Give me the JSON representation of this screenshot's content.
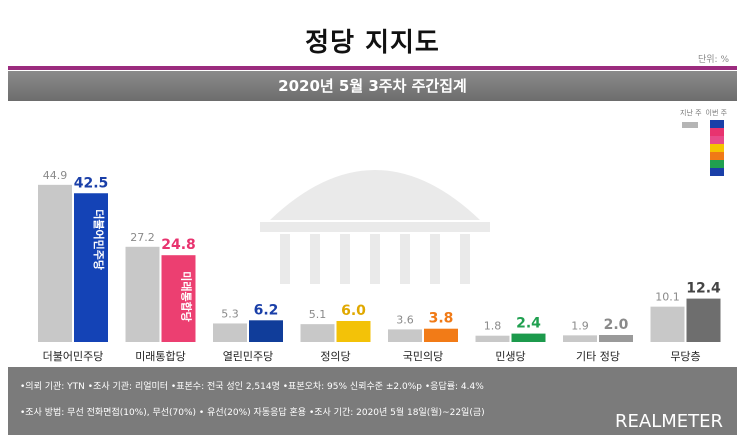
{
  "header": {
    "title": "정당 지지도",
    "unit": "단위: %",
    "subtitle": "2020년 5월 3주차 주간집계"
  },
  "legend": {
    "prev_label": "지난 주",
    "cur_label": "이번 주",
    "cur_colors": [
      "#1a3fa8",
      "#e8336f",
      "#e84a8a",
      "#f5c400",
      "#f07a16",
      "#20a050",
      "#1a3fa8"
    ]
  },
  "colors": {
    "prev_bar": "#c8c8c8",
    "accent": "#9b2b7e"
  },
  "chart_data": {
    "type": "bar",
    "categories": [
      "더불어민주당",
      "미래통합당",
      "열린민주당",
      "정의당",
      "국민의당",
      "민생당",
      "기타 정당",
      "무당층"
    ],
    "series": [
      {
        "name": "지난 주",
        "values": [
          44.9,
          27.2,
          5.3,
          5.1,
          3.6,
          1.8,
          1.9,
          10.1
        ]
      },
      {
        "name": "이번 주",
        "values": [
          42.5,
          24.8,
          6.2,
          6.0,
          3.8,
          2.4,
          2.0,
          12.4
        ]
      }
    ],
    "current_colors": [
      "#1443b6",
      "#ec3f71",
      "#103d9a",
      "#f3c208",
      "#f27b17",
      "#1c9a4c",
      "#9a9a9a",
      "#6e6e6e"
    ],
    "current_label_colors": [
      "#1a3fa8",
      "#e8336f",
      "#1a3fa8",
      "#e0a800",
      "#f07a16",
      "#20a050",
      "#8a8a8a",
      "#444444"
    ],
    "bar_texts": [
      "더불어민주당",
      "미래통합당",
      "",
      "",
      "",
      "",
      "",
      ""
    ],
    "ylim": [
      0,
      50
    ],
    "grid": false
  },
  "footer": {
    "line1": "•의뢰 기관: YTN  •조사 기관: 리얼미터  •표본수: 전국 성인 2,514명  •표본오차: 95% 신뢰수준 ±2.0%p  •응답률: 4.4%",
    "line2": "•조사 방법: 무선 전화면접(10%), 무선(70%) • 유선(20%) 자동응답 혼용  •조사 기간: 2020년 5월 18일(월)~22일(금)",
    "brand": "REALMETER"
  }
}
